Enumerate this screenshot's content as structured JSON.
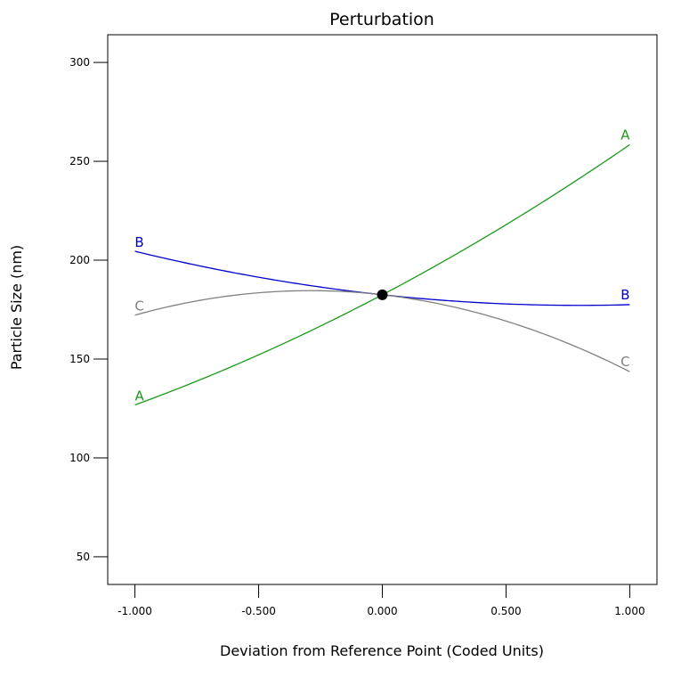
{
  "chart_data": {
    "type": "line",
    "title": "Perturbation",
    "xlabel": "Deviation from Reference Point (Coded Units)",
    "ylabel": "Particle Size (nm)",
    "xlim": [
      -1.11,
      1.11
    ],
    "ylim": [
      36,
      314
    ],
    "xticks": [
      -1.0,
      -0.5,
      0.0,
      0.5,
      1.0
    ],
    "xtick_labels": [
      "-1.000",
      "-0.500",
      "0.000",
      "0.500",
      "1.000"
    ],
    "yticks": [
      50,
      100,
      150,
      200,
      250,
      300
    ],
    "ytick_labels": [
      "50",
      "100",
      "150",
      "200",
      "250",
      "300"
    ],
    "grid": false,
    "reference_point": {
      "x": 0.0,
      "y": 182.5,
      "color": "#000000"
    },
    "series": [
      {
        "label": "A",
        "color": "#1a9a1a",
        "a": 182.5,
        "b": 65.8,
        "c": 10.1
      },
      {
        "label": "B",
        "color": "#0000cc",
        "a": 182.5,
        "b": -13.5,
        "c": 8.5
      },
      {
        "label": "C",
        "color": "#808080",
        "a": 182.5,
        "b": -14.3,
        "c": -24.6
      }
    ]
  }
}
